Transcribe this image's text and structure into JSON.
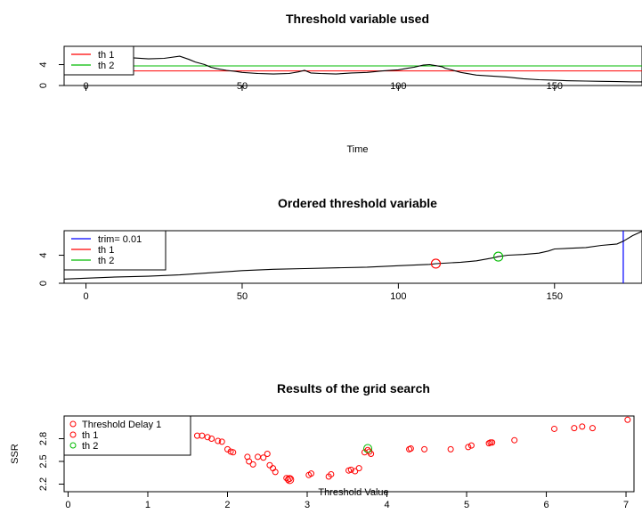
{
  "chart_data": [
    {
      "type": "line",
      "title": "Threshold variable used",
      "xlabel": "Time",
      "ylabel": "",
      "xlim": [
        -7,
        178
      ],
      "ylim": [
        0,
        7.5
      ],
      "xticks": [
        0,
        50,
        100,
        150
      ],
      "yticks": [
        0,
        4
      ],
      "legend": {
        "position": "top-left",
        "entries": [
          {
            "name": "th 1",
            "color": "#ff0000"
          },
          {
            "name": "th 2",
            "color": "#00bb00"
          }
        ]
      },
      "hlines": [
        {
          "name": "th 1",
          "y": 2.8,
          "color": "#ff0000"
        },
        {
          "name": "th 2",
          "y": 3.75,
          "color": "#00bb00"
        }
      ],
      "series": [
        {
          "color": "#000000",
          "x": [
            -7,
            0,
            5,
            10,
            15,
            20,
            25,
            30,
            33,
            35,
            38,
            40,
            42,
            45,
            48,
            50,
            55,
            60,
            65,
            68,
            70,
            72,
            75,
            80,
            85,
            90,
            95,
            100,
            103,
            105,
            108,
            110,
            112,
            114,
            115,
            117,
            120,
            125,
            130,
            135,
            140,
            145,
            150,
            155,
            160,
            165,
            170,
            175,
            178
          ],
          "y": [
            5.0,
            5.2,
            5.5,
            5.4,
            5.3,
            5.1,
            5.2,
            5.6,
            5.0,
            4.5,
            4.0,
            3.5,
            3.2,
            2.9,
            2.7,
            2.5,
            2.3,
            2.2,
            2.3,
            2.6,
            2.9,
            2.4,
            2.3,
            2.2,
            2.4,
            2.5,
            2.8,
            3.0,
            3.3,
            3.5,
            3.9,
            4.0,
            3.8,
            3.6,
            3.3,
            3.0,
            2.5,
            2.0,
            1.8,
            1.6,
            1.3,
            1.1,
            1.0,
            0.9,
            0.85,
            0.8,
            0.75,
            0.7,
            0.7
          ]
        }
      ]
    },
    {
      "type": "line",
      "title": "Ordered threshold variable",
      "xlabel": "",
      "ylabel": "",
      "xlim": [
        -7,
        178
      ],
      "ylim": [
        0,
        7.5
      ],
      "xticks": [
        0,
        50,
        100,
        150
      ],
      "yticks": [
        0,
        4
      ],
      "legend": {
        "position": "top-left",
        "entries": [
          {
            "name": "trim= 0.01",
            "color": "#0000ff"
          },
          {
            "name": "th 1",
            "color": "#ff0000"
          },
          {
            "name": "th 2",
            "color": "#00bb00"
          }
        ]
      },
      "vlines": [
        {
          "name": "trim= 0.01",
          "x": 172,
          "color": "#0000ff"
        }
      ],
      "markers": [
        {
          "name": "th 1",
          "x": 112,
          "y": 2.8,
          "color": "#ff0000"
        },
        {
          "name": "th 2",
          "x": 132,
          "y": 3.8,
          "color": "#00bb00"
        }
      ],
      "series": [
        {
          "color": "#000000",
          "x": [
            -7,
            10,
            20,
            30,
            40,
            50,
            60,
            70,
            80,
            90,
            100,
            110,
            112,
            120,
            125,
            130,
            132,
            135,
            140,
            145,
            148,
            150,
            155,
            160,
            165,
            170,
            172,
            175,
            178
          ],
          "y": [
            0.6,
            0.9,
            1.0,
            1.2,
            1.5,
            1.8,
            2.0,
            2.1,
            2.2,
            2.3,
            2.5,
            2.7,
            2.8,
            3.0,
            3.2,
            3.6,
            3.8,
            4.0,
            4.1,
            4.3,
            4.6,
            4.9,
            5.0,
            5.1,
            5.4,
            5.6,
            6.0,
            6.8,
            7.4
          ]
        }
      ]
    },
    {
      "type": "scatter",
      "title": "Results of the grid search",
      "xlabel": "Threshold Value",
      "ylabel": "SSR",
      "xlim": [
        -0.05,
        7.1
      ],
      "ylim": [
        2.1,
        3.1
      ],
      "xticks": [
        0,
        1,
        2,
        3,
        4,
        5,
        6,
        7
      ],
      "yticks": [
        2.2,
        2.5,
        2.8
      ],
      "legend": {
        "position": "top-left",
        "entries": [
          {
            "name": "Threshold Delay 1",
            "color": "#ff0000"
          },
          {
            "name": "th 1",
            "color": "#ff0000"
          },
          {
            "name": "th 2",
            "color": "#00bb00"
          }
        ]
      },
      "series": [
        {
          "name": "Threshold Delay 1",
          "color": "#ff0000",
          "x": [
            1.62,
            1.68,
            1.75,
            1.8,
            1.88,
            1.93,
            2.0,
            2.04,
            2.07,
            2.25,
            2.27,
            2.32,
            2.38,
            2.45,
            2.5,
            2.53,
            2.57,
            2.6,
            2.74,
            2.76,
            2.78,
            3.02,
            3.05,
            3.27,
            3.3,
            3.52,
            3.55,
            3.6,
            3.65,
            3.72,
            3.76,
            3.78,
            3.8,
            4.28,
            4.3,
            4.47,
            4.8,
            5.02,
            5.06,
            5.28,
            5.3,
            5.32,
            5.6,
            6.1,
            6.35,
            6.45,
            6.58,
            7.02
          ],
          "y": [
            2.84,
            2.84,
            2.82,
            2.8,
            2.77,
            2.76,
            2.66,
            2.63,
            2.62,
            2.56,
            2.5,
            2.46,
            2.56,
            2.55,
            2.6,
            2.45,
            2.41,
            2.36,
            2.28,
            2.26,
            2.27,
            2.32,
            2.34,
            2.3,
            2.33,
            2.38,
            2.39,
            2.37,
            2.41,
            2.62,
            2.65,
            2.63,
            2.6,
            2.66,
            2.67,
            2.66,
            2.66,
            2.69,
            2.71,
            2.74,
            2.75,
            2.75,
            2.78,
            2.93,
            2.94,
            2.96,
            2.94,
            3.05
          ]
        },
        {
          "name": "th 1",
          "color": "#ff0000",
          "x": [
            2.78
          ],
          "y": [
            2.26
          ]
        },
        {
          "name": "th 2",
          "color": "#00bb00",
          "x": [
            3.76
          ],
          "y": [
            2.67
          ]
        }
      ]
    }
  ]
}
